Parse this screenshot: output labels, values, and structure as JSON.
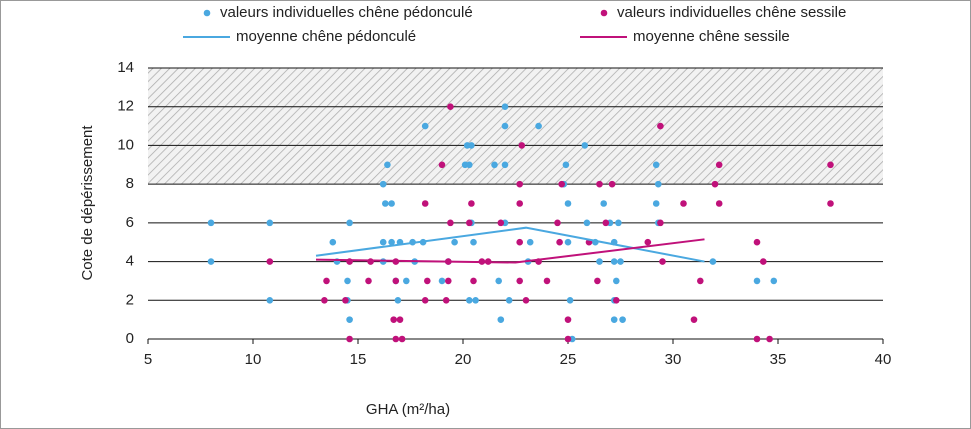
{
  "chart_data": {
    "type": "scatter",
    "x_label": "GHA (m²/ha)",
    "y_label": "Cote de dépérissement",
    "xlim": [
      5,
      40
    ],
    "xticks": [
      5,
      10,
      15,
      20,
      25,
      30,
      35,
      40
    ],
    "ylim": [
      0,
      14
    ],
    "yticks": [
      0,
      2,
      4,
      6,
      8,
      10,
      12,
      14
    ],
    "grid": true,
    "hatch_range": [
      8,
      14
    ],
    "series": [
      {
        "name": "valeurs individuelles chêne pédonculé",
        "color": "#4aa8e0",
        "type": "scatter",
        "x": [
          8,
          8,
          10.8,
          10.8,
          13.8,
          14,
          14.5,
          14.6,
          14.6,
          14.5,
          16.2,
          16.4,
          16.3,
          16.6,
          16.2,
          16.6,
          16.2,
          16.8,
          16.9,
          17,
          17.3,
          17.6,
          17.7,
          18.1,
          18.2,
          19,
          19.3,
          19.6,
          20.1,
          20.2,
          20.4,
          20.3,
          20.4,
          20.5,
          20.3,
          20.6,
          21.5,
          21.7,
          21.8,
          22,
          22,
          22,
          22,
          22.2,
          23.1,
          23.2,
          23.6,
          24.8,
          24.9,
          25,
          25,
          25.1,
          25.2,
          25.8,
          25.9,
          26.3,
          26.5,
          26.7,
          27,
          27.2,
          27.2,
          27.3,
          27.2,
          27.2,
          27.4,
          27.6,
          27.5,
          29.2,
          29.3,
          29.2,
          29.3,
          31.9,
          34,
          34.8
        ],
        "y": [
          6,
          4,
          6,
          2,
          5,
          4,
          2,
          1,
          6,
          3,
          8,
          9,
          7,
          7,
          5,
          5,
          4,
          3,
          2,
          5,
          3,
          5,
          4,
          5,
          11,
          3,
          4,
          5,
          9,
          10,
          10,
          9,
          6,
          5,
          2,
          2,
          9,
          3,
          1,
          12,
          11,
          9,
          6,
          2,
          4,
          5,
          11,
          8,
          9,
          7,
          5,
          2,
          0,
          10,
          6,
          5,
          4,
          7,
          6,
          5,
          4,
          3,
          2,
          1,
          6,
          1,
          4,
          9,
          8,
          7,
          6,
          4,
          3,
          3
        ]
      },
      {
        "name": "valeurs individuelles chêne sessile",
        "color": "#c0117a",
        "type": "scatter",
        "x": [
          10.8,
          13.5,
          13.4,
          14.6,
          14.4,
          14.6,
          15.6,
          15.5,
          16.7,
          16.8,
          16.8,
          16.8,
          17.1,
          17,
          18.2,
          18.2,
          18.3,
          19,
          19.2,
          19.4,
          19.4,
          19.3,
          19.3,
          20.4,
          20.3,
          20.5,
          20.9,
          21.2,
          21.8,
          22.8,
          22.7,
          22.7,
          22.7,
          22.7,
          23,
          23.6,
          24,
          24.5,
          24.7,
          24.6,
          25,
          25,
          26,
          26.4,
          26.5,
          26.8,
          27.1,
          27.3,
          28.8,
          29.4,
          29.4,
          29.5,
          30.5,
          31,
          31.3,
          32,
          32.2,
          32.2,
          34,
          34.3,
          34.6,
          34,
          37.5,
          37.5
        ],
        "y": [
          4,
          3,
          2,
          0,
          2,
          4,
          4,
          3,
          1,
          4,
          0,
          3,
          0,
          1,
          7,
          2,
          3,
          9,
          2,
          12,
          6,
          4,
          3,
          7,
          6,
          3,
          4,
          4,
          6,
          10,
          8,
          7,
          5,
          3,
          2,
          4,
          3,
          6,
          8,
          5,
          1,
          0,
          5,
          3,
          8,
          6,
          8,
          2,
          5,
          11,
          6,
          4,
          7,
          1,
          3,
          8,
          9,
          7,
          5,
          4,
          0,
          0,
          9,
          7
        ]
      },
      {
        "name": "moyenne chêne pédonculé",
        "color": "#4aa8e0",
        "type": "line",
        "x": [
          13,
          23,
          31.5
        ],
        "y": [
          4.3,
          5.75,
          4
        ]
      },
      {
        "name": "moyenne chêne sessile",
        "color": "#c0117a",
        "type": "line",
        "x": [
          13,
          22.5,
          31.5
        ],
        "y": [
          4.1,
          3.95,
          5.15
        ]
      }
    ]
  }
}
